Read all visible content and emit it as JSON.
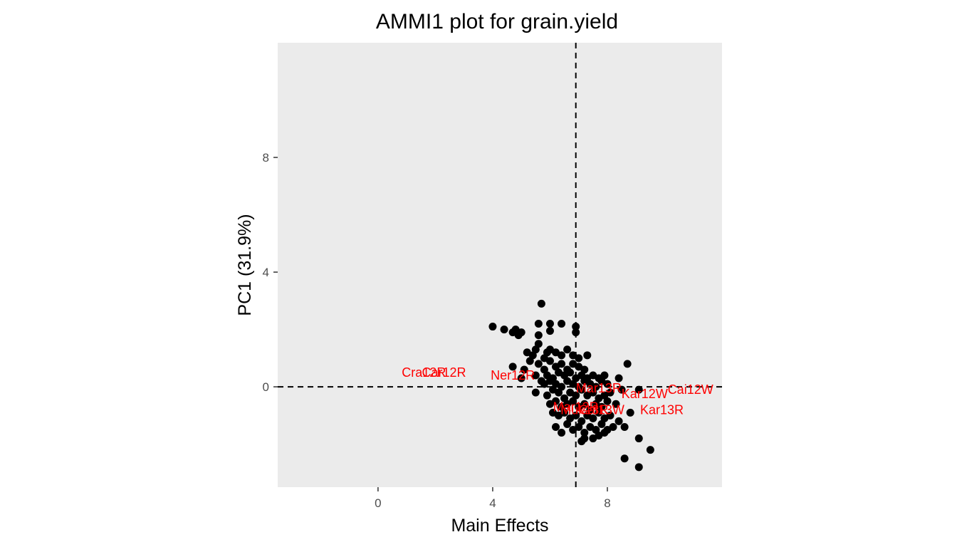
{
  "chart_data": {
    "type": "scatter",
    "title": "AMMI1 plot for grain.yield",
    "xlabel": "Main Effects",
    "ylabel": "PC1 (31.9%)",
    "xlim": [
      -3.5,
      12
    ],
    "ylim": [
      -3.5,
      12
    ],
    "xticks": [
      0,
      4,
      8
    ],
    "yticks": [
      0,
      4,
      8
    ],
    "xtick_labels": [
      "0",
      "4",
      "8"
    ],
    "ytick_labels": [
      "0",
      "4",
      "8"
    ],
    "grid": false,
    "legend": "none",
    "reference_lines": {
      "x": 6.9,
      "y": 0
    },
    "colors": {
      "panel": "#ebebeb",
      "points": "#000000",
      "labels": "#ff0000",
      "ticks": "#333333",
      "tick_text": "#4d4d4d"
    },
    "genotypes": [
      {
        "x": 5.7,
        "y": 2.9
      },
      {
        "x": 6.0,
        "y": 2.2
      },
      {
        "x": 6.4,
        "y": 2.2
      },
      {
        "x": 5.6,
        "y": 2.2
      },
      {
        "x": 6.9,
        "y": 2.1
      },
      {
        "x": 6.9,
        "y": 1.9
      },
      {
        "x": 4.0,
        "y": 2.1
      },
      {
        "x": 4.4,
        "y": 2.0
      },
      {
        "x": 4.8,
        "y": 2.0
      },
      {
        "x": 4.7,
        "y": 1.9
      },
      {
        "x": 4.9,
        "y": 1.8
      },
      {
        "x": 5.0,
        "y": 1.9
      },
      {
        "x": 6.0,
        "y": 1.95
      },
      {
        "x": 5.6,
        "y": 1.8
      },
      {
        "x": 5.6,
        "y": 1.5
      },
      {
        "x": 5.5,
        "y": 1.3
      },
      {
        "x": 5.9,
        "y": 1.2
      },
      {
        "x": 5.2,
        "y": 1.2
      },
      {
        "x": 5.4,
        "y": 1.1
      },
      {
        "x": 5.8,
        "y": 1.0
      },
      {
        "x": 6.0,
        "y": 1.3
      },
      {
        "x": 6.2,
        "y": 1.2
      },
      {
        "x": 6.4,
        "y": 1.1
      },
      {
        "x": 6.6,
        "y": 1.3
      },
      {
        "x": 6.8,
        "y": 1.1
      },
      {
        "x": 7.0,
        "y": 1.0
      },
      {
        "x": 7.3,
        "y": 1.1
      },
      {
        "x": 5.3,
        "y": 0.9
      },
      {
        "x": 5.6,
        "y": 0.8
      },
      {
        "x": 5.8,
        "y": 0.6
      },
      {
        "x": 6.0,
        "y": 0.9
      },
      {
        "x": 6.2,
        "y": 0.7
      },
      {
        "x": 6.4,
        "y": 0.8
      },
      {
        "x": 6.6,
        "y": 0.6
      },
      {
        "x": 6.8,
        "y": 0.8
      },
      {
        "x": 7.0,
        "y": 0.7
      },
      {
        "x": 7.2,
        "y": 0.6
      },
      {
        "x": 4.7,
        "y": 0.7
      },
      {
        "x": 5.1,
        "y": 0.6
      },
      {
        "x": 5.0,
        "y": 0.3
      },
      {
        "x": 5.5,
        "y": 0.4
      },
      {
        "x": 5.7,
        "y": 0.2
      },
      {
        "x": 5.9,
        "y": 0.4
      },
      {
        "x": 6.1,
        "y": 0.3
      },
      {
        "x": 6.3,
        "y": 0.5
      },
      {
        "x": 6.5,
        "y": 0.4
      },
      {
        "x": 6.7,
        "y": 0.5
      },
      {
        "x": 6.9,
        "y": 0.3
      },
      {
        "x": 7.1,
        "y": 0.4
      },
      {
        "x": 7.3,
        "y": 0.3
      },
      {
        "x": 7.5,
        "y": 0.4
      },
      {
        "x": 7.7,
        "y": 0.3
      },
      {
        "x": 7.9,
        "y": 0.4
      },
      {
        "x": 8.4,
        "y": 0.3
      },
      {
        "x": 8.7,
        "y": 0.8
      },
      {
        "x": 5.8,
        "y": 0.1
      },
      {
        "x": 6.0,
        "y": 0.2
      },
      {
        "x": 6.2,
        "y": 0.1
      },
      {
        "x": 6.4,
        "y": 0.0
      },
      {
        "x": 6.6,
        "y": 0.2
      },
      {
        "x": 6.8,
        "y": 0.1
      },
      {
        "x": 7.0,
        "y": 0.0
      },
      {
        "x": 7.2,
        "y": 0.2
      },
      {
        "x": 7.4,
        "y": 0.1
      },
      {
        "x": 7.6,
        "y": 0.0
      },
      {
        "x": 7.8,
        "y": 0.2
      },
      {
        "x": 8.0,
        "y": 0.1
      },
      {
        "x": 5.5,
        "y": -0.2
      },
      {
        "x": 5.9,
        "y": -0.3
      },
      {
        "x": 6.1,
        "y": -0.1
      },
      {
        "x": 6.3,
        "y": -0.2
      },
      {
        "x": 6.5,
        "y": -0.4
      },
      {
        "x": 6.7,
        "y": -0.2
      },
      {
        "x": 6.9,
        "y": -0.3
      },
      {
        "x": 7.1,
        "y": -0.1
      },
      {
        "x": 7.3,
        "y": -0.3
      },
      {
        "x": 7.5,
        "y": -0.2
      },
      {
        "x": 7.7,
        "y": -0.4
      },
      {
        "x": 7.9,
        "y": -0.3
      },
      {
        "x": 8.1,
        "y": -0.2
      },
      {
        "x": 8.5,
        "y": -0.1
      },
      {
        "x": 9.1,
        "y": -0.1
      },
      {
        "x": 6.0,
        "y": -0.6
      },
      {
        "x": 6.2,
        "y": -0.5
      },
      {
        "x": 6.4,
        "y": -0.7
      },
      {
        "x": 6.6,
        "y": -0.6
      },
      {
        "x": 6.8,
        "y": -0.5
      },
      {
        "x": 7.0,
        "y": -0.7
      },
      {
        "x": 7.2,
        "y": -0.6
      },
      {
        "x": 7.4,
        "y": -0.8
      },
      {
        "x": 7.6,
        "y": -0.6
      },
      {
        "x": 7.8,
        "y": -0.7
      },
      {
        "x": 8.0,
        "y": -0.5
      },
      {
        "x": 8.3,
        "y": -0.6
      },
      {
        "x": 6.1,
        "y": -0.9
      },
      {
        "x": 6.3,
        "y": -1.0
      },
      {
        "x": 6.5,
        "y": -0.9
      },
      {
        "x": 6.7,
        "y": -1.1
      },
      {
        "x": 6.9,
        "y": -1.0
      },
      {
        "x": 7.1,
        "y": -1.2
      },
      {
        "x": 7.3,
        "y": -1.0
      },
      {
        "x": 7.5,
        "y": -1.1
      },
      {
        "x": 7.7,
        "y": -0.9
      },
      {
        "x": 7.9,
        "y": -1.1
      },
      {
        "x": 8.1,
        "y": -1.0
      },
      {
        "x": 8.4,
        "y": -1.2
      },
      {
        "x": 8.8,
        "y": -0.9
      },
      {
        "x": 6.2,
        "y": -1.4
      },
      {
        "x": 6.6,
        "y": -1.3
      },
      {
        "x": 6.8,
        "y": -1.5
      },
      {
        "x": 7.0,
        "y": -1.4
      },
      {
        "x": 7.2,
        "y": -1.6
      },
      {
        "x": 7.4,
        "y": -1.4
      },
      {
        "x": 7.6,
        "y": -1.5
      },
      {
        "x": 7.8,
        "y": -1.3
      },
      {
        "x": 8.0,
        "y": -1.5
      },
      {
        "x": 8.2,
        "y": -1.4
      },
      {
        "x": 8.6,
        "y": -1.4
      },
      {
        "x": 6.4,
        "y": -1.6
      },
      {
        "x": 7.2,
        "y": -1.8
      },
      {
        "x": 7.7,
        "y": -1.7
      },
      {
        "x": 7.9,
        "y": -1.6
      },
      {
        "x": 9.1,
        "y": -1.8
      },
      {
        "x": 7.1,
        "y": -1.9
      },
      {
        "x": 7.5,
        "y": -1.8
      },
      {
        "x": 9.5,
        "y": -2.2
      },
      {
        "x": 8.6,
        "y": -2.5
      },
      {
        "x": 9.1,
        "y": -2.8
      }
    ],
    "environments": [
      {
        "label": "Car12R",
        "x": 2.3,
        "y": 0.5
      },
      {
        "label": "Cra12R",
        "x": 1.6,
        "y": 0.5
      },
      {
        "label": "Ner12R",
        "x": 4.7,
        "y": 0.4
      },
      {
        "label": "Mar13R",
        "x": 7.7,
        "y": -0.05
      },
      {
        "label": "Kar12W",
        "x": 9.3,
        "y": -0.25
      },
      {
        "label": "Cai12W",
        "x": 10.9,
        "y": -0.1
      },
      {
        "label": "Mar12R",
        "x": 6.9,
        "y": -0.7
      },
      {
        "label": "Muk13R",
        "x": 7.2,
        "y": -0.8
      },
      {
        "label": "Cai13W",
        "x": 7.8,
        "y": -0.8
      },
      {
        "label": "Kar13R",
        "x": 9.9,
        "y": -0.8
      }
    ]
  }
}
